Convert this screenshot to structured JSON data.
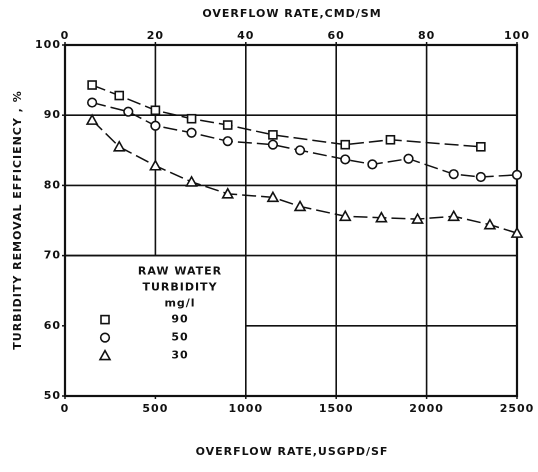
{
  "chart_data": {
    "type": "scatter",
    "x_label": "OVERFLOW RATE,USGPD/SF",
    "x2_label": "OVERFLOW RATE,CMD/SM",
    "y_label": "TURBIDITY REMOVAL EFFICIENCY , %",
    "legend_title": [
      "RAW WATER",
      "TURBIDITY",
      "mg/l"
    ],
    "xlim": [
      0,
      2500
    ],
    "xticks": [
      0,
      500,
      1000,
      1500,
      2000,
      2500
    ],
    "x2lim": [
      0,
      100
    ],
    "x2ticks": [
      0,
      20,
      40,
      60,
      80,
      100
    ],
    "ylim": [
      50,
      100
    ],
    "yticks": [
      50,
      60,
      70,
      80,
      90,
      100
    ],
    "grid": true,
    "legend": "lower left",
    "series": [
      {
        "name": "90",
        "marker": "square",
        "color": "#111",
        "x": [
          150,
          300,
          500,
          700,
          900,
          1150,
          1550,
          1800,
          2300
        ],
        "values": [
          94.3,
          92.8,
          90.7,
          89.5,
          88.6,
          87.2,
          85.8,
          86.5,
          85.5
        ]
      },
      {
        "name": "50",
        "marker": "circle",
        "color": "#111",
        "x": [
          150,
          350,
          500,
          700,
          900,
          1150,
          1300,
          1550,
          1700,
          1900,
          2150,
          2300,
          2500
        ],
        "values": [
          91.8,
          90.5,
          88.5,
          87.5,
          86.3,
          85.8,
          85,
          83.7,
          83,
          83.8,
          81.6,
          81.2,
          81.5
        ]
      },
      {
        "name": "30",
        "marker": "triangle",
        "color": "#111",
        "x": [
          150,
          300,
          500,
          700,
          900,
          1150,
          1300,
          1550,
          1750,
          1950,
          2150,
          2350,
          2500
        ],
        "values": [
          89.3,
          85.5,
          82.8,
          80.5,
          78.8,
          78.3,
          77,
          75.6,
          75.4,
          75.2,
          75.6,
          74.4,
          73.2
        ]
      }
    ]
  }
}
